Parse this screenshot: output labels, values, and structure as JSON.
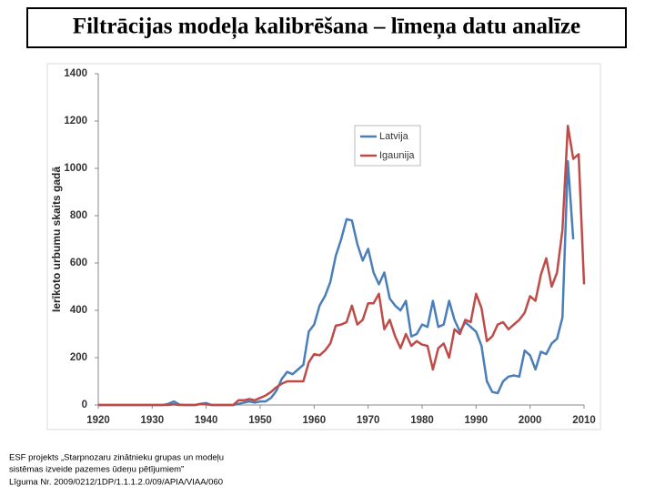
{
  "chart_data": {
    "type": "line",
    "title": "Filtrācijas modeļa kalibrēšana – līmeņa datu analīze",
    "y_label": "Ierīkoto urbumu skaits gadā",
    "x": [
      1920,
      1921,
      1922,
      1923,
      1924,
      1925,
      1926,
      1927,
      1928,
      1929,
      1930,
      1931,
      1932,
      1933,
      1934,
      1935,
      1936,
      1937,
      1938,
      1939,
      1940,
      1941,
      1942,
      1943,
      1944,
      1945,
      1946,
      1947,
      1948,
      1949,
      1950,
      1951,
      1952,
      1953,
      1954,
      1955,
      1956,
      1957,
      1958,
      1959,
      1960,
      1961,
      1962,
      1963,
      1964,
      1965,
      1966,
      1967,
      1968,
      1969,
      1970,
      1971,
      1972,
      1973,
      1974,
      1975,
      1976,
      1977,
      1978,
      1979,
      1980,
      1981,
      1982,
      1983,
      1984,
      1985,
      1986,
      1987,
      1988,
      1989,
      1990,
      1991,
      1992,
      1993,
      1994,
      1995,
      1996,
      1997,
      1998,
      1999,
      2000,
      2001,
      2002,
      2003,
      2004,
      2005,
      2006,
      2007,
      2008,
      2009,
      2010
    ],
    "series": [
      {
        "name": "Latvija",
        "color": "#4a7ebb",
        "values": [
          0,
          0,
          0,
          0,
          0,
          0,
          0,
          0,
          0,
          0,
          0,
          0,
          0,
          5,
          15,
          2,
          0,
          0,
          0,
          5,
          8,
          0,
          0,
          0,
          0,
          0,
          5,
          10,
          15,
          10,
          15,
          15,
          30,
          60,
          110,
          140,
          130,
          150,
          170,
          310,
          340,
          420,
          460,
          520,
          630,
          700,
          785,
          780,
          680,
          610,
          660,
          560,
          510,
          560,
          450,
          420,
          400,
          440,
          290,
          300,
          340,
          330,
          440,
          330,
          340,
          440,
          360,
          310,
          350,
          330,
          310,
          250,
          100,
          55,
          50,
          100,
          120,
          125,
          120,
          230,
          210,
          150,
          225,
          215,
          260,
          280,
          370,
          1030,
          700,
          null,
          null
        ]
      },
      {
        "name": "Igaunija",
        "color": "#be4b48",
        "values": [
          0,
          0,
          0,
          0,
          0,
          0,
          0,
          0,
          0,
          0,
          0,
          0,
          0,
          0,
          3,
          0,
          0,
          0,
          0,
          5,
          3,
          0,
          0,
          0,
          0,
          0,
          20,
          20,
          25,
          20,
          30,
          40,
          55,
          75,
          90,
          100,
          100,
          100,
          100,
          180,
          215,
          210,
          230,
          260,
          335,
          340,
          350,
          420,
          340,
          360,
          430,
          430,
          470,
          320,
          360,
          290,
          240,
          300,
          250,
          270,
          255,
          250,
          150,
          240,
          260,
          200,
          320,
          300,
          360,
          350,
          470,
          410,
          270,
          290,
          340,
          350,
          320,
          340,
          360,
          390,
          460,
          440,
          550,
          620,
          500,
          560,
          740,
          1180,
          1040,
          1060,
          510
        ]
      }
    ],
    "xlim": [
      1920,
      2010
    ],
    "ylim": [
      0,
      1400
    ],
    "xticks": [
      1920,
      1930,
      1940,
      1950,
      1960,
      1970,
      1980,
      1990,
      2000,
      2010
    ],
    "yticks": [
      0,
      200,
      400,
      600,
      800,
      1000,
      1200,
      1400
    ],
    "grid": false
  },
  "footer": {
    "lines": [
      "ESF projekts „Starpnozaru zinātnieku grupas un modeļu",
      "sistēmas izveide pazemes ūdeņu pētījumiem”",
      "Līguma Nr. 2009/0212/1DP/1.1.1.2.0/09/APIA/VIAA/060"
    ]
  }
}
